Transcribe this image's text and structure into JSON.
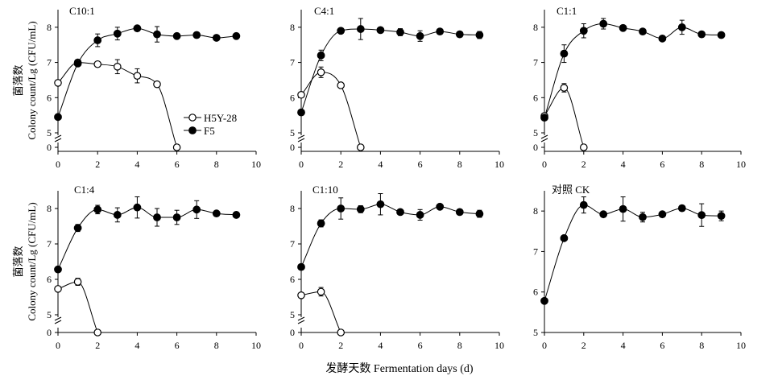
{
  "figure": {
    "xlabel": "发酵天数 Fermentation days (d)",
    "ylabel_cn": "菌落数",
    "ylabel_en": "Colony count/Lg (CFU/mL)"
  },
  "legend": [
    {
      "name": "H5Y-28",
      "marker": "open"
    },
    {
      "name": "F5",
      "marker": "filled"
    }
  ],
  "chart_data": [
    {
      "type": "scatter",
      "title": "C10:1",
      "xlim": [
        0,
        10
      ],
      "ylim": [
        5,
        8.5
      ],
      "axis_break": true,
      "xticks": [
        "0",
        "2",
        "4",
        "6",
        "8",
        "10"
      ],
      "yticks": [
        "5",
        "6",
        "7",
        "8"
      ],
      "break_label": "0",
      "series": [
        {
          "name": "H5Y-28",
          "marker": "open",
          "x": [
            0,
            1,
            2,
            3,
            4,
            5,
            6
          ],
          "y": [
            6.42,
            7.0,
            6.95,
            6.88,
            6.62,
            6.38,
            0
          ],
          "err": [
            0,
            0,
            0,
            0.2,
            0.2,
            0.07,
            0
          ]
        },
        {
          "name": "F5",
          "marker": "filled",
          "x": [
            0,
            1,
            2,
            3,
            4,
            5,
            6,
            7,
            8,
            9
          ],
          "y": [
            5.45,
            6.97,
            7.63,
            7.82,
            7.97,
            7.8,
            7.75,
            7.78,
            7.7,
            7.75
          ],
          "err": [
            0,
            0.05,
            0.18,
            0.18,
            0.05,
            0.22,
            0.05,
            0.08,
            0.05,
            0.05
          ]
        }
      ]
    },
    {
      "type": "scatter",
      "title": "C4:1",
      "xlim": [
        0,
        10
      ],
      "ylim": [
        5,
        8.5
      ],
      "axis_break": true,
      "xticks": [
        "0",
        "2",
        "4",
        "6",
        "8",
        "10"
      ],
      "yticks": [
        "5",
        "6",
        "7",
        "8"
      ],
      "break_label": "0",
      "series": [
        {
          "name": "H5Y-28",
          "marker": "open",
          "x": [
            0,
            1,
            2,
            3
          ],
          "y": [
            6.08,
            6.72,
            6.35,
            0
          ],
          "err": [
            0,
            0.15,
            0.06,
            0
          ]
        },
        {
          "name": "F5",
          "marker": "filled",
          "x": [
            0,
            1,
            2,
            3,
            4,
            5,
            6,
            7,
            8,
            9
          ],
          "y": [
            5.58,
            7.2,
            7.9,
            7.95,
            7.92,
            7.86,
            7.75,
            7.88,
            7.8,
            7.78
          ],
          "err": [
            0,
            0.15,
            0.04,
            0.3,
            0.05,
            0.1,
            0.15,
            0.05,
            0.05,
            0.1
          ]
        }
      ]
    },
    {
      "type": "scatter",
      "title": "C1:1",
      "xlim": [
        0,
        10
      ],
      "ylim": [
        5,
        8.5
      ],
      "axis_break": true,
      "xticks": [
        "0",
        "2",
        "4",
        "6",
        "8",
        "10"
      ],
      "yticks": [
        "5",
        "6",
        "7",
        "8"
      ],
      "break_label": "0",
      "series": [
        {
          "name": "H5Y-28",
          "marker": "open",
          "x": [
            0,
            1,
            2
          ],
          "y": [
            5.48,
            6.28,
            0
          ],
          "err": [
            0,
            0.12,
            0
          ]
        },
        {
          "name": "F5",
          "marker": "filled",
          "x": [
            0,
            1,
            2,
            3,
            4,
            5,
            6,
            7,
            8,
            9
          ],
          "y": [
            5.43,
            7.25,
            7.9,
            8.1,
            7.98,
            7.88,
            7.68,
            8.0,
            7.8,
            7.78
          ],
          "err": [
            0,
            0.25,
            0.2,
            0.15,
            0.05,
            0.05,
            0.05,
            0.2,
            0.05,
            0.05
          ]
        }
      ]
    },
    {
      "type": "scatter",
      "title": "C1:4",
      "xlim": [
        0,
        10
      ],
      "ylim": [
        5,
        8.5
      ],
      "axis_break": true,
      "xticks": [
        "0",
        "2",
        "4",
        "6",
        "8",
        "10"
      ],
      "yticks": [
        "5",
        "6",
        "7",
        "8"
      ],
      "break_label": "0",
      "series": [
        {
          "name": "H5Y-28",
          "marker": "open",
          "x": [
            0,
            1,
            2
          ],
          "y": [
            5.73,
            5.93,
            0
          ],
          "err": [
            0,
            0.1,
            0
          ]
        },
        {
          "name": "F5",
          "marker": "filled",
          "x": [
            0,
            1,
            2,
            3,
            4,
            5,
            6,
            7,
            8,
            9
          ],
          "y": [
            6.28,
            7.45,
            7.97,
            7.82,
            8.03,
            7.75,
            7.75,
            7.97,
            7.86,
            7.82
          ],
          "err": [
            0,
            0.1,
            0.12,
            0.2,
            0.3,
            0.25,
            0.2,
            0.25,
            0.05,
            0.05
          ]
        }
      ]
    },
    {
      "type": "scatter",
      "title": "C1:10",
      "xlim": [
        0,
        10
      ],
      "ylim": [
        5,
        8.5
      ],
      "axis_break": true,
      "xticks": [
        "0",
        "2",
        "4",
        "6",
        "8",
        "10"
      ],
      "yticks": [
        "5",
        "6",
        "7",
        "8"
      ],
      "break_label": "0",
      "series": [
        {
          "name": "H5Y-28",
          "marker": "open",
          "x": [
            0,
            1,
            2
          ],
          "y": [
            5.55,
            5.65,
            0
          ],
          "err": [
            0,
            0.12,
            0
          ]
        },
        {
          "name": "F5",
          "marker": "filled",
          "x": [
            0,
            1,
            2,
            3,
            4,
            5,
            6,
            7,
            8,
            9
          ],
          "y": [
            6.35,
            7.58,
            8.0,
            7.98,
            8.12,
            7.9,
            7.82,
            8.05,
            7.9,
            7.85
          ],
          "err": [
            0,
            0.1,
            0.3,
            0.1,
            0.3,
            0.05,
            0.15,
            0.05,
            0.05,
            0.1
          ]
        }
      ]
    },
    {
      "type": "scatter",
      "title": "对照 CK",
      "xlim": [
        0,
        10
      ],
      "ylim": [
        5,
        8.5
      ],
      "axis_break": false,
      "xticks": [
        "0",
        "2",
        "4",
        "6",
        "8",
        "10"
      ],
      "yticks": [
        "5",
        "6",
        "7",
        "8"
      ],
      "series": [
        {
          "name": "F5",
          "marker": "filled",
          "x": [
            0,
            1,
            2,
            3,
            4,
            5,
            6,
            7,
            8,
            9
          ],
          "y": [
            5.78,
            7.33,
            8.15,
            7.92,
            8.05,
            7.85,
            7.92,
            8.07,
            7.9,
            7.88
          ],
          "err": [
            0,
            0.05,
            0.2,
            0.05,
            0.3,
            0.12,
            0.05,
            0.05,
            0.28,
            0.12
          ]
        }
      ]
    }
  ]
}
